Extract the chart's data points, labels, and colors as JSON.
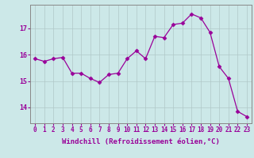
{
  "x": [
    0,
    1,
    2,
    3,
    4,
    5,
    6,
    7,
    8,
    9,
    10,
    11,
    12,
    13,
    14,
    15,
    16,
    17,
    18,
    19,
    20,
    21,
    22,
    23
  ],
  "y": [
    15.85,
    15.75,
    15.85,
    15.9,
    15.3,
    15.3,
    15.1,
    14.95,
    15.25,
    15.3,
    15.85,
    16.15,
    15.85,
    16.7,
    16.65,
    17.15,
    17.2,
    17.55,
    17.4,
    16.85,
    15.55,
    15.1,
    13.85,
    13.65
  ],
  "line_color": "#990099",
  "marker": "D",
  "marker_size": 2.5,
  "background_color": "#cce8e8",
  "grid_color": "#b0c8c8",
  "xlabel": "Windchill (Refroidissement éolien,°C)",
  "xlabel_color": "#990099",
  "ylabel_ticks": [
    14,
    15,
    16,
    17
  ],
  "xtick_labels": [
    "0",
    "1",
    "2",
    "3",
    "4",
    "5",
    "6",
    "7",
    "8",
    "9",
    "10",
    "11",
    "12",
    "13",
    "14",
    "15",
    "16",
    "17",
    "18",
    "19",
    "20",
    "21",
    "22",
    "23"
  ],
  "ylim": [
    13.4,
    17.9
  ],
  "xlim": [
    -0.5,
    23.5
  ],
  "tick_color": "#990099",
  "label_fontsize": 6.5,
  "tick_fontsize": 5.5
}
